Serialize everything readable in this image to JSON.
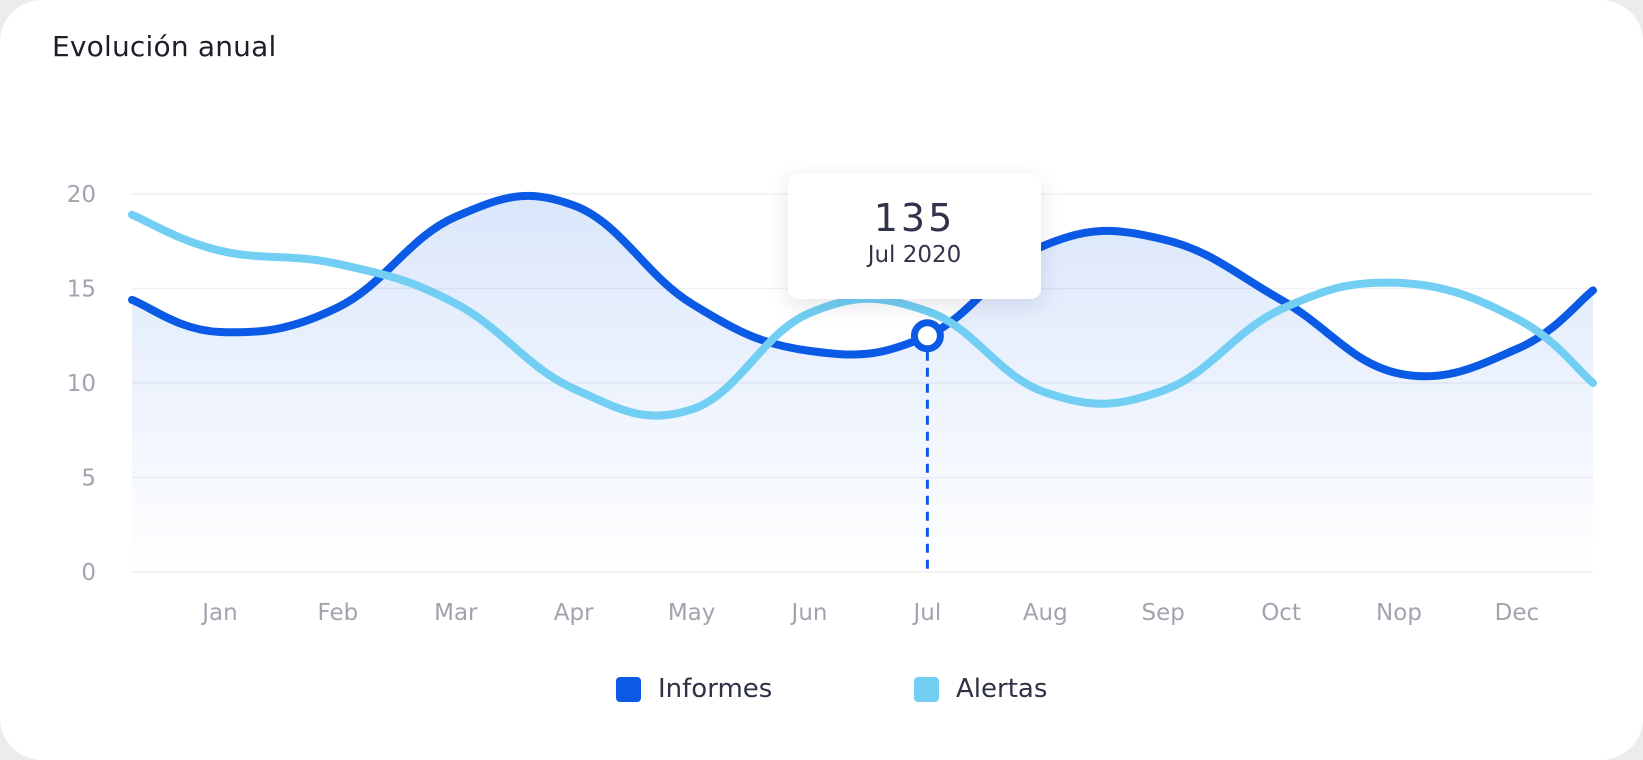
{
  "card": {
    "title": "Evolución anual"
  },
  "colors": {
    "informes": "#0a5ae6",
    "alertas": "#72cff3",
    "grid": "#f0f1f4",
    "axis_text": "#a3a3b0"
  },
  "chart_data": {
    "type": "line",
    "title": "Evolución anual",
    "xlabel": "",
    "ylabel": "",
    "ylim": [
      0,
      20
    ],
    "yticks": [
      0,
      5,
      10,
      15,
      20
    ],
    "categories": [
      "Jan",
      "Feb",
      "Mar",
      "Apr",
      "May",
      "Jun",
      "Jul",
      "Aug",
      "Sep",
      "Oct",
      "Nop",
      "Dec"
    ],
    "grid": true,
    "legend_position": "bottom-center",
    "series": [
      {
        "name": "Informes",
        "values": [
          12.7,
          14.0,
          18.8,
          19.4,
          14.2,
          11.7,
          12.5,
          17.3,
          17.6,
          14.4,
          10.5,
          11.8
        ],
        "start_value": 14.4,
        "end_value": 14.9,
        "area_fill": true
      },
      {
        "name": "Alertas",
        "values": [
          17.0,
          16.3,
          14.2,
          9.7,
          8.6,
          13.7,
          13.8,
          9.5,
          9.6,
          13.9,
          15.3,
          13.4
        ],
        "start_value": 18.9,
        "end_value": 10.0,
        "area_fill": false
      }
    ],
    "tooltip": {
      "value": "135",
      "label": "Jul 2020",
      "category": "Jul",
      "series": "Informes"
    }
  }
}
